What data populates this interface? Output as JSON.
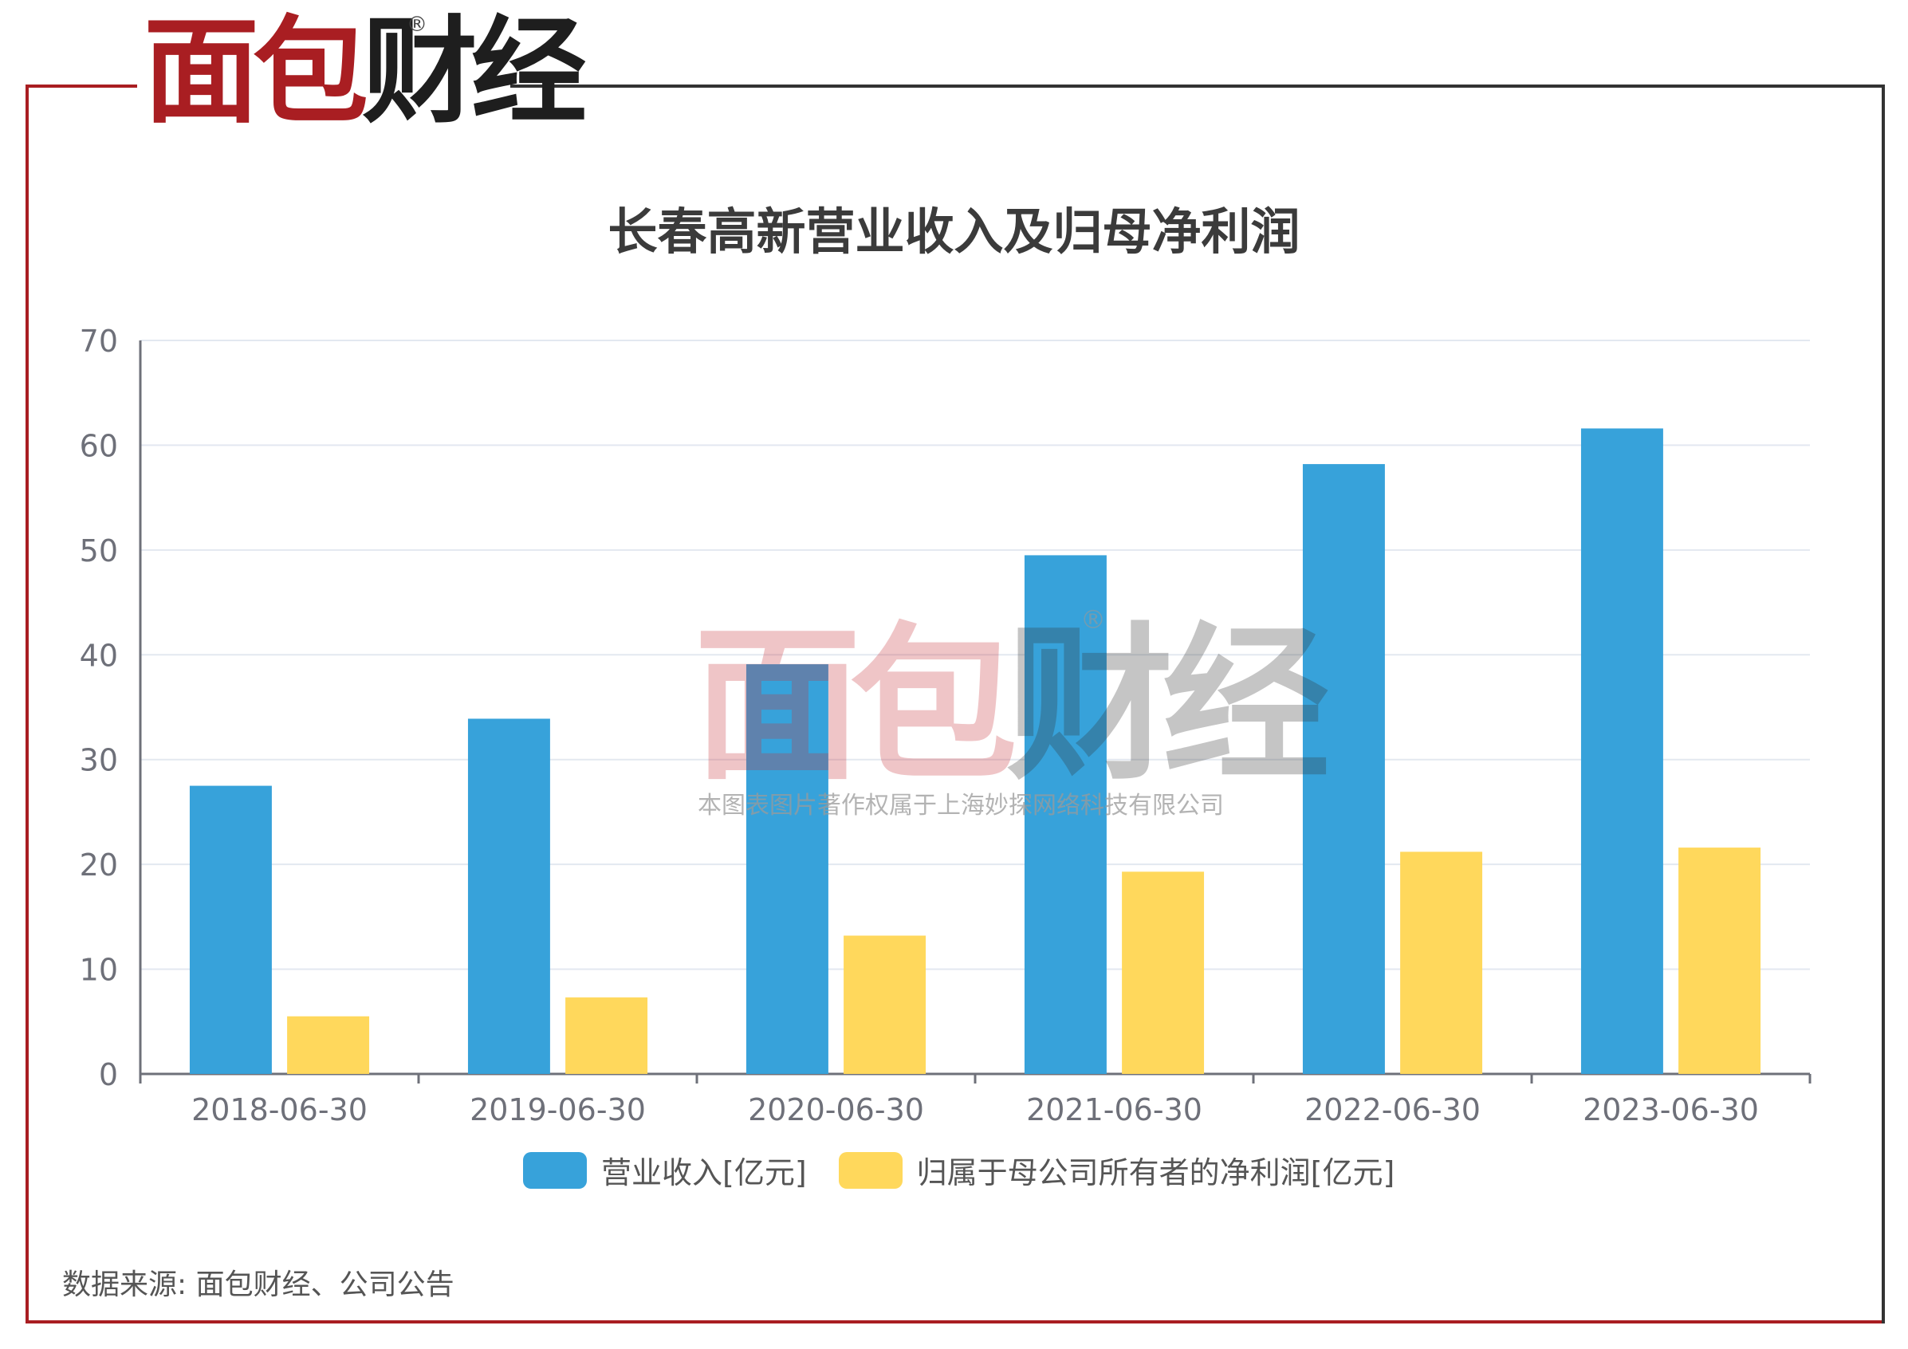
{
  "header": {
    "logo_red": "面包",
    "logo_dark": "财经",
    "logo_mark": "®"
  },
  "watermark": {
    "red": "面包",
    "dark": "财经",
    "mark": "®",
    "subtext": "本图表图片著作权属于上海妙探网络科技有限公司"
  },
  "source_note": "数据来源: 面包财经、公司公告",
  "colors": {
    "frame_red": "#a91e22",
    "frame_dark": "#333333",
    "series1": "#37a2da",
    "series2": "#ffd85c",
    "grid": "#e3e8f0",
    "axis": "#6e7079"
  },
  "chart_data": {
    "type": "bar",
    "title": "长春高新营业收入及归母净利润",
    "categories": [
      "2018-06-30",
      "2019-06-30",
      "2020-06-30",
      "2021-06-30",
      "2022-06-30",
      "2023-06-30"
    ],
    "series": [
      {
        "name": "营业收入[亿元]",
        "values": [
          27.5,
          33.9,
          39.1,
          49.5,
          58.2,
          61.6
        ]
      },
      {
        "name": "归属于母公司所有者的净利润[亿元]",
        "values": [
          5.5,
          7.3,
          13.2,
          19.3,
          21.2,
          21.6
        ]
      }
    ],
    "ylim": [
      0,
      70
    ],
    "yticks": [
      "0",
      "10",
      "20",
      "30",
      "40",
      "50",
      "60",
      "70"
    ],
    "grid": true,
    "legend": "bottom-center"
  }
}
